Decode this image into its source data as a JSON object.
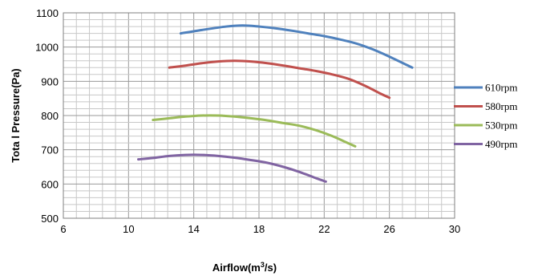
{
  "chart_data": {
    "type": "line",
    "title": "",
    "xlabel": "Airflow(m³/s)",
    "xlabel_main": "Airflow(m",
    "xlabel_sup": "3",
    "xlabel_tail": "/s)",
    "ylabel": "Tota l Pressure(Pa)",
    "xlim": [
      6,
      30
    ],
    "ylim": [
      500,
      1100
    ],
    "x_ticks": [
      "6",
      "10",
      "14",
      "18",
      "22",
      "26",
      "30"
    ],
    "y_ticks": [
      "500",
      "600",
      "700",
      "800",
      "900",
      "1000",
      "1100"
    ],
    "grid": true,
    "legend_position": "right",
    "series": [
      {
        "name": "610rpm",
        "color": "#4f81bd",
        "x": [
          13.2,
          14.5,
          16.0,
          17.0,
          18.0,
          19.0,
          20.0,
          21.0,
          22.0,
          23.0,
          24.0,
          25.0,
          26.0,
          27.4
        ],
        "y": [
          1040,
          1050,
          1060,
          1063,
          1060,
          1055,
          1048,
          1040,
          1032,
          1022,
          1010,
          993,
          972,
          940
        ]
      },
      {
        "name": "580rpm",
        "color": "#c0504d",
        "x": [
          12.5,
          13.5,
          14.5,
          15.5,
          16.5,
          17.5,
          18.5,
          19.5,
          20.5,
          21.5,
          22.5,
          23.5,
          24.5,
          25.5,
          26.0
        ],
        "y": [
          940,
          946,
          953,
          958,
          960,
          958,
          953,
          946,
          938,
          930,
          920,
          907,
          887,
          863,
          852
        ]
      },
      {
        "name": "530rpm",
        "color": "#9bbb59",
        "x": [
          11.5,
          12.5,
          13.5,
          14.5,
          15.5,
          16.5,
          17.5,
          18.5,
          19.5,
          20.5,
          21.5,
          22.5,
          23.2,
          23.9
        ],
        "y": [
          787,
          792,
          797,
          800,
          800,
          797,
          792,
          786,
          778,
          770,
          757,
          740,
          725,
          710
        ]
      },
      {
        "name": "490rpm",
        "color": "#8064a2",
        "x": [
          10.6,
          11.5,
          12.5,
          13.5,
          14.5,
          15.5,
          16.5,
          17.5,
          18.5,
          19.5,
          20.5,
          21.5,
          22.1
        ],
        "y": [
          672,
          676,
          682,
          685,
          685,
          682,
          677,
          670,
          662,
          650,
          635,
          617,
          607
        ]
      }
    ]
  }
}
